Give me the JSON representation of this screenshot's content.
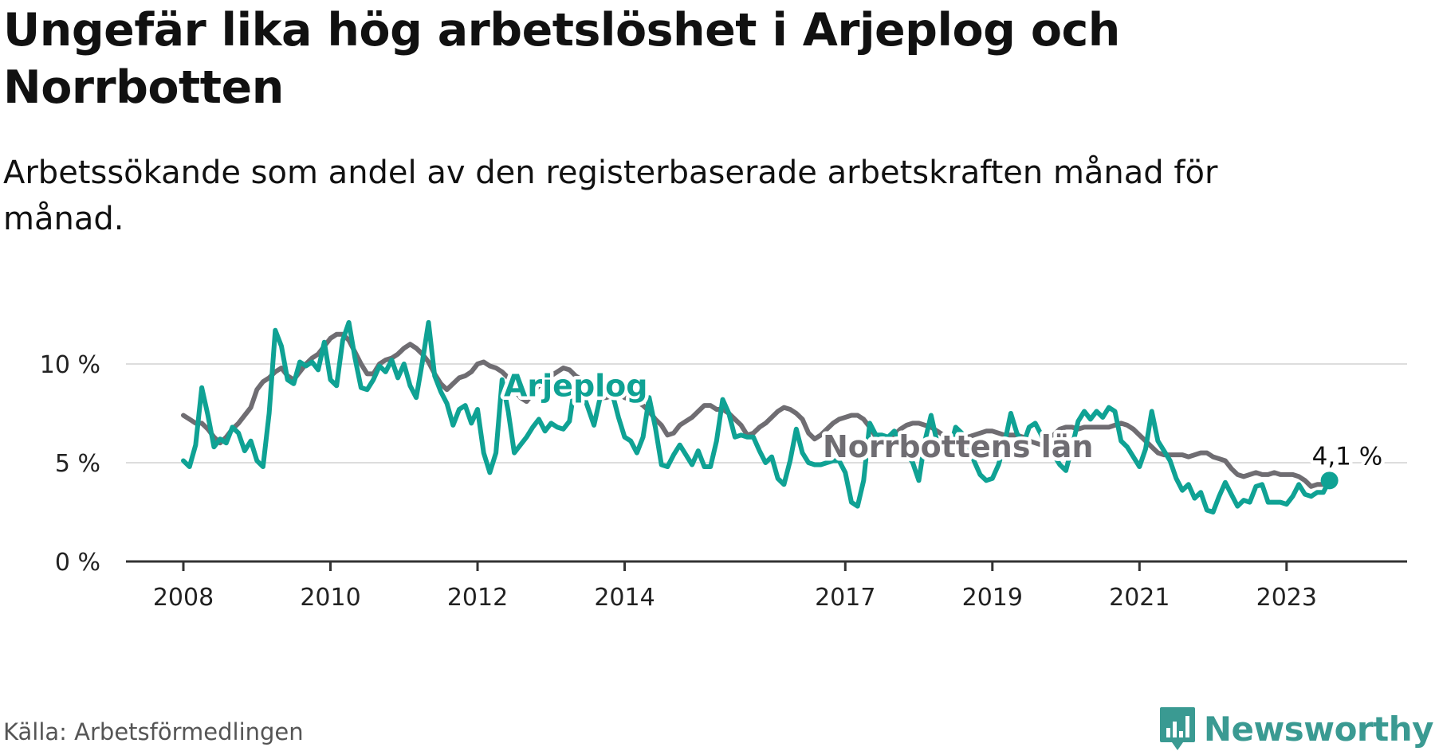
{
  "header": {
    "title": "Ungefär lika hög arbetslöshet i Arjeplog och Norrbotten",
    "subtitle": "Arbetssökande som andel av den registerbaserade arbetskraften månad för månad."
  },
  "footer": {
    "source": "Källa: Arbetsförmedlingen",
    "brand": "Newsworthy",
    "brand_icon": "bar-chart-speech-icon"
  },
  "colors": {
    "arjeplog": "#0fa294",
    "norrbotten": "#6f6d72",
    "gridline": "#dddddd",
    "axis": "#333333",
    "brand": "#3a9a92"
  },
  "chart_data": {
    "type": "line",
    "title": "Ungefär lika hög arbetslöshet i Arjeplog och Norrbotten",
    "subtitle": "Arbetssökande som andel av den registerbaserade arbetskraften månad för månad.",
    "xlabel": "",
    "ylabel": "",
    "x_range": [
      2008.0,
      2023.75
    ],
    "ylim": [
      0,
      12.5
    ],
    "y_ticks": [
      0,
      5,
      10
    ],
    "y_tick_labels": [
      "0 %",
      "5 %",
      "10 %"
    ],
    "x_ticks": [
      2008,
      2010,
      2012,
      2014,
      2017,
      2019,
      2021,
      2023
    ],
    "x_tick_labels": [
      "2008",
      "2010",
      "2012",
      "2014",
      "2017",
      "2019",
      "2021",
      "2023"
    ],
    "grid": true,
    "end_label": "4,1 %",
    "series": [
      {
        "name": "Arjeplog",
        "color_key": "arjeplog",
        "x_start": 2008.0,
        "step": 0.0833333,
        "values": [
          5.1,
          4.8,
          5.9,
          8.8,
          7.4,
          5.8,
          6.2,
          6.0,
          6.8,
          6.5,
          5.6,
          6.1,
          5.1,
          4.8,
          7.5,
          11.7,
          10.9,
          9.2,
          9.0,
          10.1,
          9.9,
          10.1,
          9.7,
          11.1,
          9.2,
          8.9,
          11.2,
          12.1,
          10.3,
          8.8,
          8.7,
          9.2,
          9.9,
          9.6,
          10.2,
          9.3,
          10.0,
          8.9,
          8.3,
          10.1,
          12.1,
          9.4,
          8.6,
          8.0,
          6.9,
          7.7,
          7.9,
          7.0,
          7.7,
          5.5,
          4.5,
          5.5,
          9.2,
          7.6,
          5.5,
          5.9,
          6.3,
          6.8,
          7.2,
          6.6,
          7.0,
          6.8,
          6.7,
          7.1,
          9.2,
          8.7,
          7.8,
          6.9,
          8.3,
          8.7,
          8.5,
          7.3,
          6.3,
          6.1,
          5.5,
          6.3,
          8.3,
          6.8,
          4.9,
          4.8,
          5.4,
          5.9,
          5.4,
          4.9,
          5.6,
          4.8,
          4.8,
          6.1,
          8.2,
          7.5,
          6.3,
          6.4,
          6.3,
          6.3,
          5.6,
          5.0,
          5.3,
          4.2,
          3.9,
          5.1,
          6.7,
          5.5,
          5.0,
          4.9,
          4.9,
          5.0,
          5.1,
          5.1,
          4.5,
          3.0,
          2.8,
          4.1,
          7.0,
          6.4,
          6.4,
          6.3,
          6.6,
          6.0,
          5.5,
          5.0,
          4.1,
          6.1,
          7.4,
          6.0,
          5.9,
          5.6,
          6.8,
          6.5,
          6.0,
          5.1,
          4.4,
          4.1,
          4.2,
          4.9,
          6.0,
          7.5,
          6.5,
          5.9,
          6.8,
          7.0,
          6.4,
          5.3,
          5.4,
          4.9,
          4.6,
          5.8,
          7.1,
          7.6,
          7.2,
          7.6,
          7.3,
          7.8,
          7.6,
          6.1,
          5.8,
          5.3,
          4.8,
          5.7,
          7.6,
          6.1,
          5.6,
          5.1,
          4.2,
          3.6,
          3.9,
          3.2,
          3.5,
          2.6,
          2.5,
          3.3,
          4.0,
          3.4,
          2.8,
          3.1,
          3.0,
          3.8,
          3.9,
          3.0,
          3.0,
          3.0,
          2.9,
          3.3,
          3.9,
          3.4,
          3.3,
          3.5,
          3.5,
          4.1
        ]
      },
      {
        "name": "Norrbottens län",
        "color_key": "norrbotten",
        "x_start": 2008.0,
        "step": 0.0833333,
        "values": [
          7.4,
          7.2,
          7.0,
          7.0,
          6.7,
          6.3,
          6.0,
          6.3,
          6.7,
          7.0,
          7.4,
          7.8,
          8.7,
          9.1,
          9.3,
          9.6,
          9.8,
          9.4,
          9.2,
          9.6,
          10.0,
          10.3,
          10.5,
          10.9,
          11.3,
          11.5,
          11.5,
          11.2,
          10.6,
          10.0,
          9.5,
          9.5,
          10.0,
          10.2,
          10.3,
          10.5,
          10.8,
          11.0,
          10.8,
          10.5,
          10.1,
          9.5,
          9.0,
          8.7,
          9.0,
          9.3,
          9.4,
          9.6,
          10.0,
          10.1,
          9.9,
          9.8,
          9.6,
          9.3,
          8.7,
          8.3,
          8.1,
          8.5,
          8.9,
          9.1,
          9.4,
          9.6,
          9.8,
          9.7,
          9.4,
          9.2,
          9.0,
          8.6,
          8.3,
          8.3,
          8.4,
          8.5,
          8.3,
          8.2,
          8.1,
          7.9,
          7.6,
          7.2,
          6.9,
          6.4,
          6.5,
          6.9,
          7.1,
          7.3,
          7.6,
          7.9,
          7.9,
          7.7,
          7.7,
          7.5,
          7.2,
          6.9,
          6.4,
          6.5,
          6.8,
          7.0,
          7.3,
          7.6,
          7.8,
          7.7,
          7.5,
          7.2,
          6.5,
          6.2,
          6.4,
          6.7,
          7.0,
          7.2,
          7.3,
          7.4,
          7.4,
          7.2,
          6.8,
          6.3,
          6.0,
          6.1,
          6.4,
          6.7,
          6.9,
          7.0,
          7.0,
          6.9,
          6.8,
          6.6,
          6.4,
          6.2,
          6.1,
          6.2,
          6.3,
          6.4,
          6.5,
          6.6,
          6.6,
          6.5,
          6.4,
          6.4,
          6.4,
          6.3,
          6.1,
          6.0,
          5.9,
          6.1,
          6.4,
          6.7,
          6.8,
          6.8,
          6.7,
          6.8,
          6.8,
          6.8,
          6.8,
          6.8,
          6.9,
          7.0,
          6.9,
          6.7,
          6.4,
          6.1,
          5.8,
          5.5,
          5.4,
          5.4,
          5.4,
          5.4,
          5.3,
          5.4,
          5.5,
          5.5,
          5.3,
          5.2,
          5.1,
          4.7,
          4.4,
          4.3,
          4.4,
          4.5,
          4.4,
          4.4,
          4.5,
          4.4,
          4.4,
          4.4,
          4.3,
          4.1,
          3.8,
          3.9,
          3.9,
          4.0,
          4.1
        ]
      }
    ]
  }
}
